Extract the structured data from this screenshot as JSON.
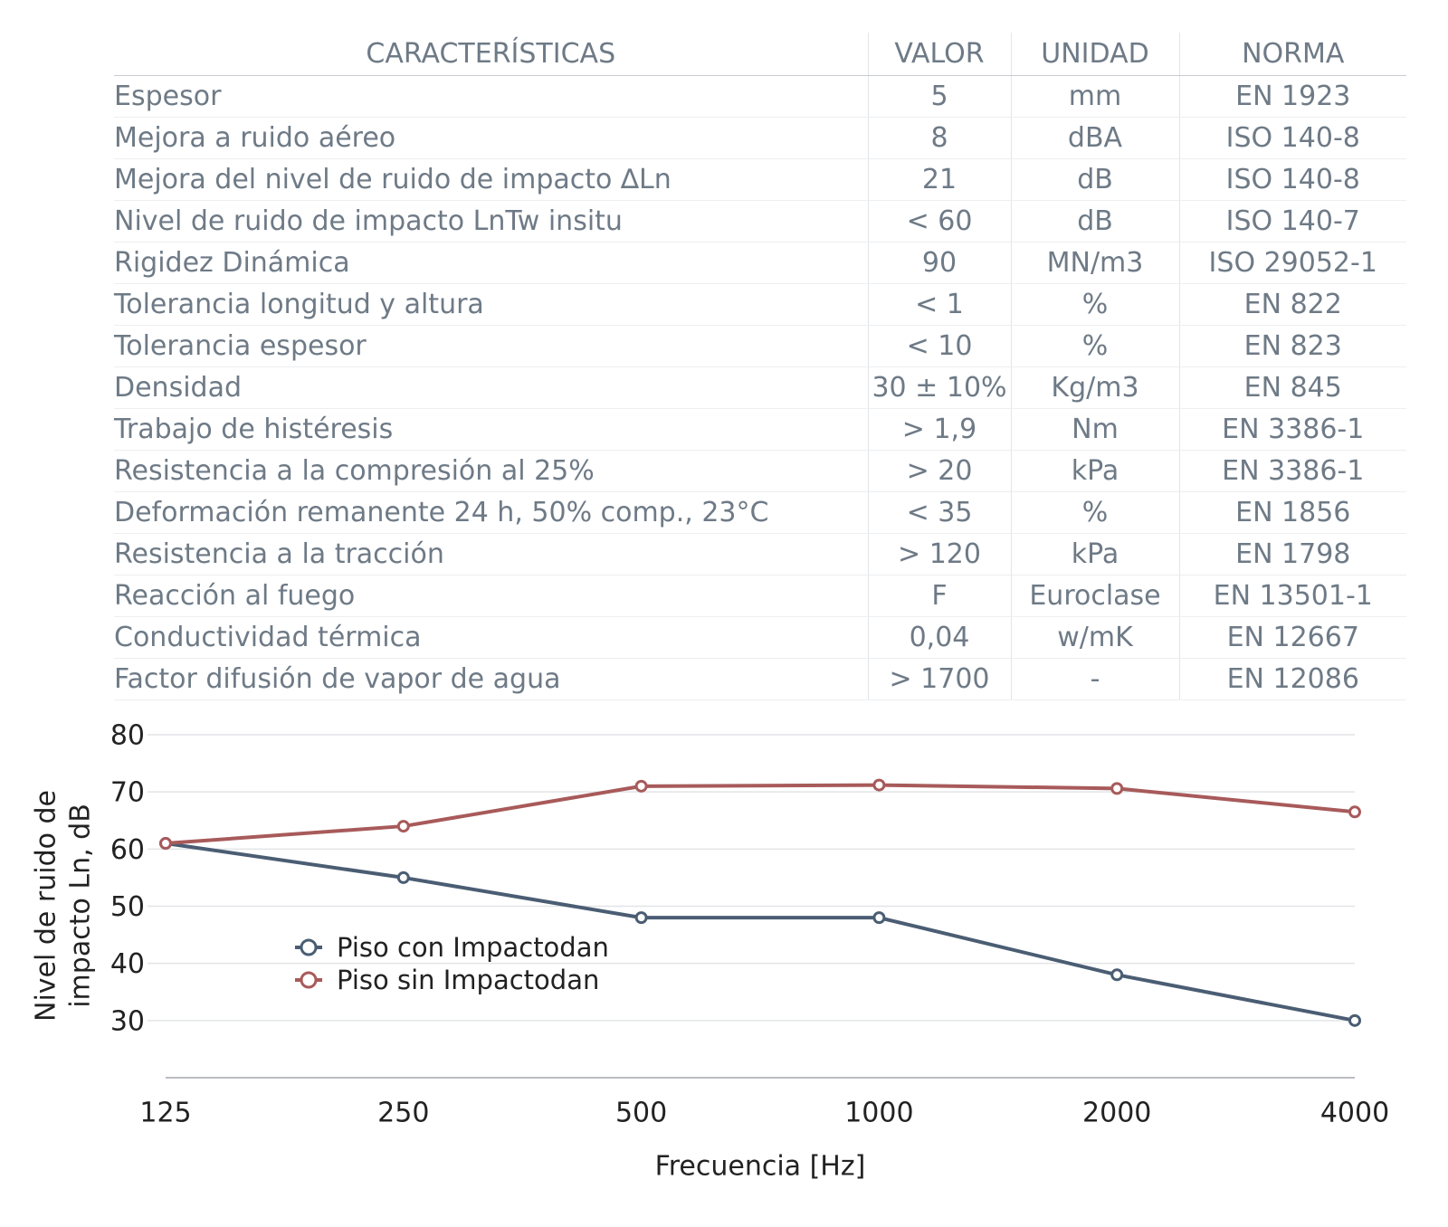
{
  "table": {
    "headers": [
      "CARACTERÍSTICAS",
      "VALOR",
      "UNIDAD",
      "NORMA"
    ],
    "rows": [
      [
        "Espesor",
        "5",
        "mm",
        "EN 1923"
      ],
      [
        "Mejora a ruido aéreo",
        "8",
        "dBA",
        "ISO 140-8"
      ],
      [
        "Mejora del nivel de ruido de impacto ∆Ln",
        "21",
        "dB",
        "ISO 140-8"
      ],
      [
        "Nivel de ruido de impacto LnTw insitu",
        "< 60",
        "dB",
        "ISO 140-7"
      ],
      [
        "Rigidez Dinámica",
        "90",
        "MN/m3",
        "ISO 29052-1"
      ],
      [
        "Tolerancia longitud y altura",
        "< 1",
        "%",
        "EN 822"
      ],
      [
        "Tolerancia espesor",
        "< 10",
        "%",
        "EN 823"
      ],
      [
        "Densidad",
        "30 ± 10%",
        "Kg/m3",
        "EN 845"
      ],
      [
        "Trabajo de histéresis",
        "> 1,9",
        "Nm",
        "EN 3386-1"
      ],
      [
        "Resistencia a la compresión al 25%",
        "> 20",
        "kPa",
        "EN 3386-1"
      ],
      [
        "Deformación remanente 24 h, 50% comp., 23°C",
        "< 35",
        "%",
        "EN 1856"
      ],
      [
        "Resistencia a la tracción",
        "> 120",
        "kPa",
        "EN 1798"
      ],
      [
        "Reacción al fuego",
        "F",
        "Euroclase",
        "EN 13501-1"
      ],
      [
        "Conductividad térmica",
        "0,04",
        "w/mK",
        "EN 12667"
      ],
      [
        "Factor difusión de vapor de agua",
        "> 1700",
        "-",
        "EN 12086"
      ]
    ]
  },
  "chart_data": {
    "type": "line",
    "categories": [
      "125",
      "250",
      "500",
      "1000",
      "2000",
      "4000"
    ],
    "series": [
      {
        "name": "Piso con Impactodan",
        "values": [
          61,
          55,
          48,
          48,
          38,
          30
        ],
        "color": "#4a5d73"
      },
      {
        "name": "Piso sin Impactodan",
        "values": [
          61,
          64,
          71,
          71.2,
          70.6,
          66.5
        ],
        "color": "#a85a5a"
      }
    ],
    "xlabel": "Frecuencia [Hz]",
    "ylabel_lines": [
      "Nivel de ruido de",
      "impacto Ln, dB"
    ],
    "yticks": [
      "80",
      "70",
      "60",
      "50",
      "40",
      "30"
    ],
    "ylim": [
      20,
      80
    ],
    "grid": true,
    "legend_position": "lower-left"
  }
}
